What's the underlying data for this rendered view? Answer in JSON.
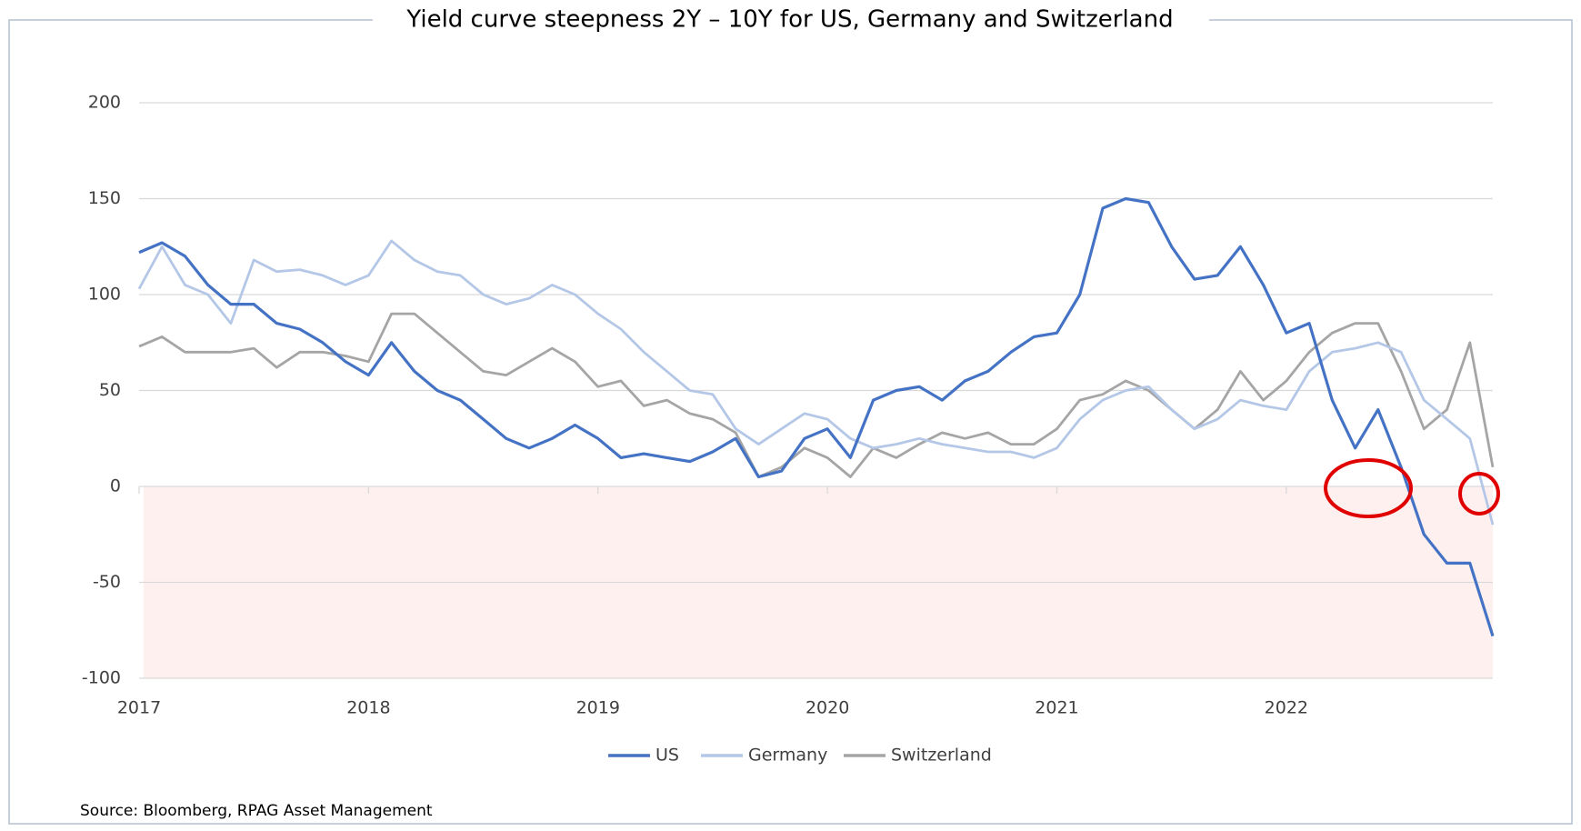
{
  "chart_data": {
    "type": "line",
    "title": "Yield curve steepness 2Y – 10Y for US, Germany and Switzerland",
    "source": "Source: Bloomberg, RPAG Asset Management",
    "x": [
      2017.0,
      2017.1,
      2017.2,
      2017.3,
      2017.4,
      2017.5,
      2017.6,
      2017.7,
      2017.8,
      2017.9,
      2018.0,
      2018.1,
      2018.2,
      2018.3,
      2018.4,
      2018.5,
      2018.6,
      2018.7,
      2018.8,
      2018.9,
      2019.0,
      2019.1,
      2019.2,
      2019.3,
      2019.4,
      2019.5,
      2019.6,
      2019.7,
      2019.8,
      2019.9,
      2020.0,
      2020.1,
      2020.2,
      2020.3,
      2020.4,
      2020.5,
      2020.6,
      2020.7,
      2020.8,
      2020.9,
      2021.0,
      2021.1,
      2021.2,
      2021.3,
      2021.4,
      2021.5,
      2021.6,
      2021.7,
      2021.8,
      2021.9,
      2022.0,
      2022.1,
      2022.2,
      2022.3,
      2022.4,
      2022.5,
      2022.6,
      2022.7,
      2022.8,
      2022.9
    ],
    "series": [
      {
        "name": "US",
        "color": "#4472c4",
        "values": [
          122,
          127,
          120,
          105,
          95,
          95,
          85,
          82,
          75,
          65,
          58,
          75,
          60,
          50,
          45,
          35,
          25,
          20,
          25,
          32,
          25,
          15,
          17,
          15,
          13,
          18,
          25,
          5,
          8,
          25,
          30,
          15,
          45,
          50,
          52,
          45,
          55,
          60,
          70,
          78,
          80,
          100,
          145,
          150,
          148,
          125,
          108,
          110,
          125,
          105,
          80,
          85,
          45,
          20,
          40,
          10,
          -25,
          -40,
          -40,
          -78
        ]
      },
      {
        "name": "Germany",
        "color": "#b4c7e7",
        "values": [
          103,
          125,
          105,
          100,
          85,
          118,
          112,
          113,
          110,
          105,
          110,
          128,
          118,
          112,
          110,
          100,
          95,
          98,
          105,
          100,
          90,
          82,
          70,
          60,
          50,
          48,
          30,
          22,
          30,
          38,
          35,
          25,
          20,
          22,
          25,
          22,
          20,
          18,
          18,
          15,
          20,
          35,
          45,
          50,
          52,
          40,
          30,
          35,
          45,
          42,
          40,
          60,
          70,
          72,
          75,
          70,
          45,
          35,
          25,
          -20
        ]
      },
      {
        "name": "Switzerland",
        "color": "#a5a5a5",
        "values": [
          73,
          78,
          70,
          70,
          70,
          72,
          62,
          70,
          70,
          68,
          65,
          90,
          90,
          80,
          70,
          60,
          58,
          65,
          72,
          65,
          52,
          55,
          42,
          45,
          38,
          35,
          28,
          5,
          10,
          20,
          15,
          5,
          20,
          15,
          22,
          28,
          25,
          28,
          22,
          22,
          30,
          45,
          48,
          55,
          50,
          40,
          30,
          40,
          60,
          45,
          55,
          70,
          80,
          85,
          85,
          60,
          30,
          40,
          75,
          10
        ]
      }
    ],
    "xlim": [
      2017,
      2022.9
    ],
    "xticks": [
      2017,
      2018,
      2019,
      2020,
      2021,
      2022
    ],
    "ylim": [
      -100,
      200
    ],
    "yticks": [
      -100,
      -50,
      0,
      50,
      100,
      150,
      200
    ],
    "grid": true,
    "legend": "bottom"
  }
}
